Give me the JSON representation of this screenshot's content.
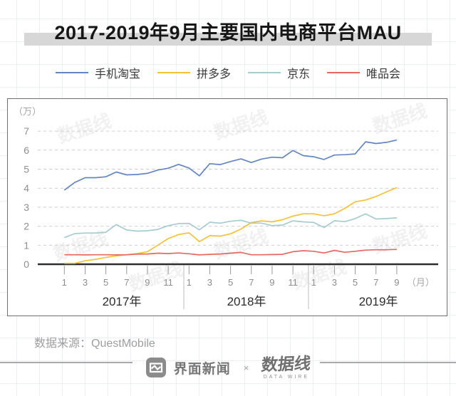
{
  "title": "2017-2019年9月主要国内电商平台MAU",
  "legend": [
    {
      "key": "taobao",
      "label": "手机淘宝",
      "color": "#6486c0"
    },
    {
      "key": "pinduoduo",
      "label": "拼多多",
      "color": "#f3c237"
    },
    {
      "key": "jd",
      "label": "京东",
      "color": "#a6cbd0"
    },
    {
      "key": "vipshop",
      "label": "唯品会",
      "color": "#e8685f"
    }
  ],
  "chart_data": {
    "type": "line",
    "title": "2017-2019年9月主要国内电商平台MAU",
    "unit_label": "（万）",
    "month_unit_label": "（月）",
    "ylim": [
      0,
      7
    ],
    "yticks": [
      0,
      1,
      2,
      3,
      4,
      5,
      6,
      7
    ],
    "grid": "dashed-horizontal",
    "legend_position": "top",
    "watermark": "数据线",
    "x_groups": [
      {
        "year": "2017年",
        "months": [
          1,
          3,
          5,
          7,
          9,
          11
        ]
      },
      {
        "year": "2018年",
        "months": [
          1,
          3,
          5,
          7,
          9,
          11
        ]
      },
      {
        "year": "2019年",
        "months": [
          1,
          3,
          5,
          7,
          9
        ]
      }
    ],
    "x_description": "monthly points from 2017-01 to 2019-09 (33 points)",
    "series": [
      {
        "key": "taobao",
        "name": "手机淘宝",
        "color": "#6486c0",
        "values": [
          3.9,
          4.3,
          4.55,
          4.55,
          4.6,
          4.85,
          4.7,
          4.72,
          4.78,
          4.95,
          5.05,
          5.25,
          5.06,
          4.65,
          5.29,
          5.24,
          5.4,
          5.54,
          5.35,
          5.53,
          5.63,
          5.6,
          5.98,
          5.71,
          5.65,
          5.51,
          5.74,
          5.76,
          5.8,
          6.44,
          6.35,
          6.41,
          6.53
        ]
      },
      {
        "key": "pinduoduo",
        "name": "拼多多",
        "color": "#f3c237",
        "values": [
          0.05,
          0.05,
          0.18,
          0.26,
          0.36,
          0.44,
          0.5,
          0.56,
          0.66,
          1.0,
          1.35,
          1.56,
          1.65,
          1.19,
          1.5,
          1.48,
          1.6,
          1.85,
          2.19,
          2.28,
          2.23,
          2.34,
          2.53,
          2.65,
          2.65,
          2.55,
          2.65,
          2.94,
          3.28,
          3.38,
          3.56,
          3.8,
          4.03
        ]
      },
      {
        "key": "jd",
        "name": "京东",
        "color": "#a6cbd0",
        "values": [
          1.4,
          1.61,
          1.64,
          1.64,
          1.68,
          2.09,
          1.8,
          1.74,
          1.76,
          1.83,
          2.03,
          2.14,
          2.15,
          1.81,
          2.21,
          2.16,
          2.26,
          2.31,
          2.16,
          2.16,
          2.03,
          2.06,
          2.28,
          2.23,
          2.2,
          1.93,
          2.29,
          2.24,
          2.4,
          2.65,
          2.38,
          2.4,
          2.44
        ]
      },
      {
        "key": "vipshop",
        "name": "唯品会",
        "color": "#e8685f",
        "values": [
          0.5,
          0.5,
          0.49,
          0.5,
          0.5,
          0.49,
          0.5,
          0.53,
          0.54,
          0.58,
          0.56,
          0.59,
          0.55,
          0.49,
          0.52,
          0.54,
          0.58,
          0.62,
          0.5,
          0.5,
          0.51,
          0.52,
          0.66,
          0.71,
          0.68,
          0.59,
          0.73,
          0.63,
          0.68,
          0.74,
          0.76,
          0.76,
          0.78
        ]
      }
    ]
  },
  "footer": {
    "source": "数据来源：QuestMobile",
    "brand1": "界面新闻",
    "separator": "×",
    "brand2": "数据线",
    "brand2_sub": "DATA WIRE"
  },
  "colors": {
    "title_band": "#d7d7d7",
    "grid_paper": "#eaeff4",
    "axis": "#2d2d2d",
    "gridline": "#cccccc"
  }
}
